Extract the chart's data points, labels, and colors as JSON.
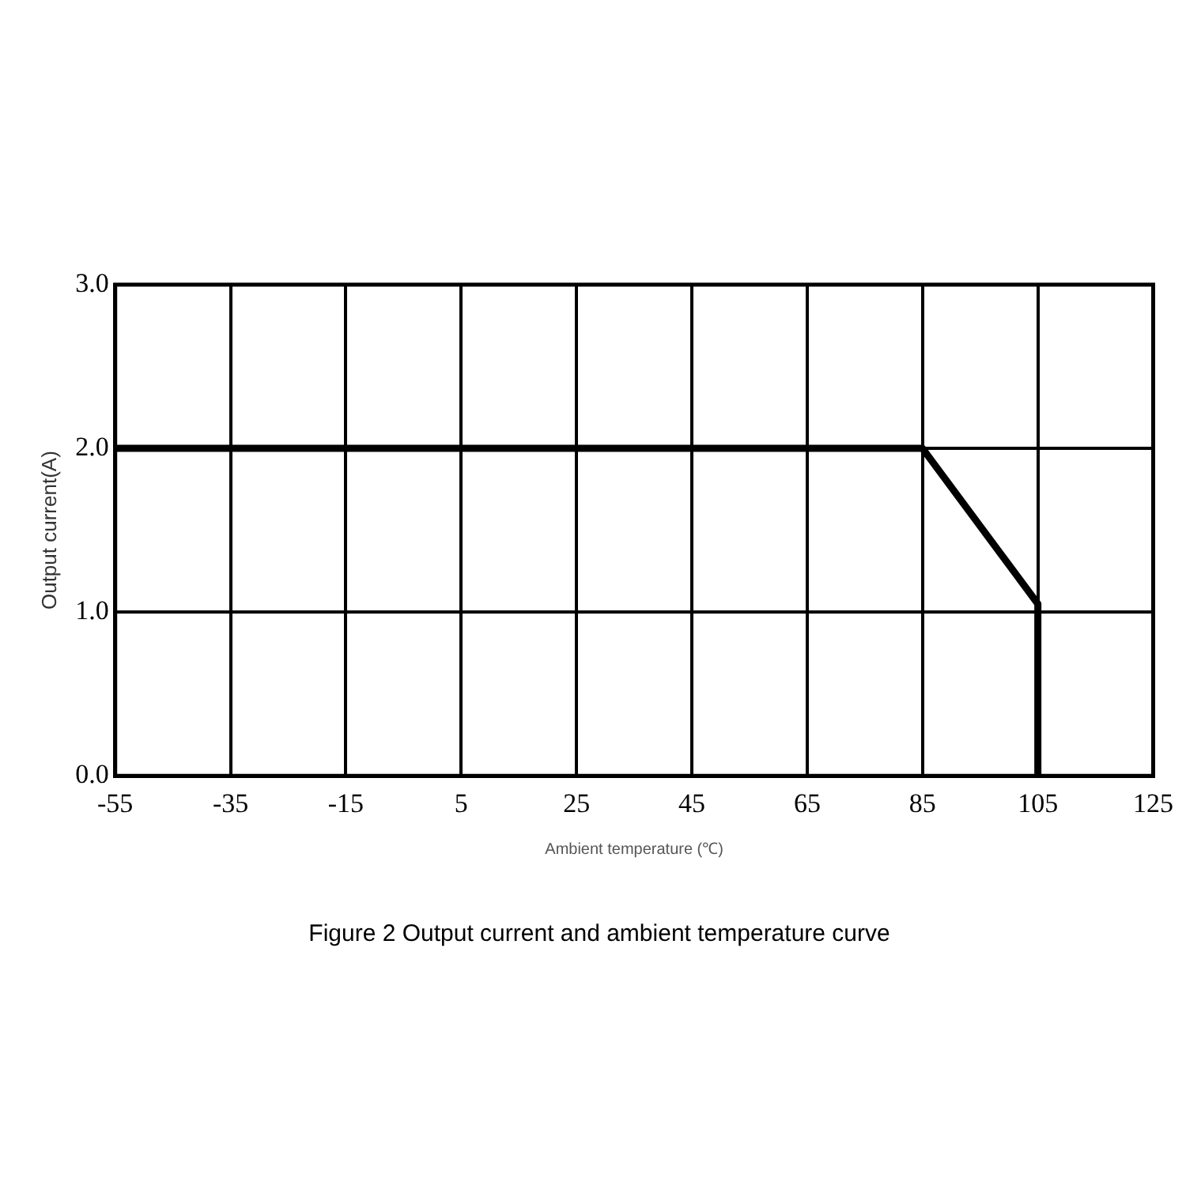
{
  "chart_data": {
    "type": "line",
    "title": "Figure 2 Output current and ambient temperature curve",
    "xlabel": "Ambient temperature (℃)",
    "ylabel": "Output current(A)",
    "x": [
      -55,
      85,
      105,
      105
    ],
    "series": [
      {
        "color": "#000000",
        "values": [
          2,
          2,
          1.05,
          0
        ]
      }
    ],
    "xlim": [
      -55,
      125
    ],
    "xticks": [
      -55,
      -35,
      -15,
      5,
      25,
      45,
      65,
      85,
      105,
      125
    ],
    "ylim": [
      0,
      3
    ],
    "yticks": [
      {
        "value": 0,
        "label": "0.0"
      },
      {
        "value": 1,
        "label": "1.0"
      },
      {
        "value": 2,
        "label": "2.0"
      },
      {
        "value": 3,
        "label": "3.0"
      }
    ],
    "grid": true,
    "legend": false,
    "marker": "none",
    "line_style": "solid"
  }
}
